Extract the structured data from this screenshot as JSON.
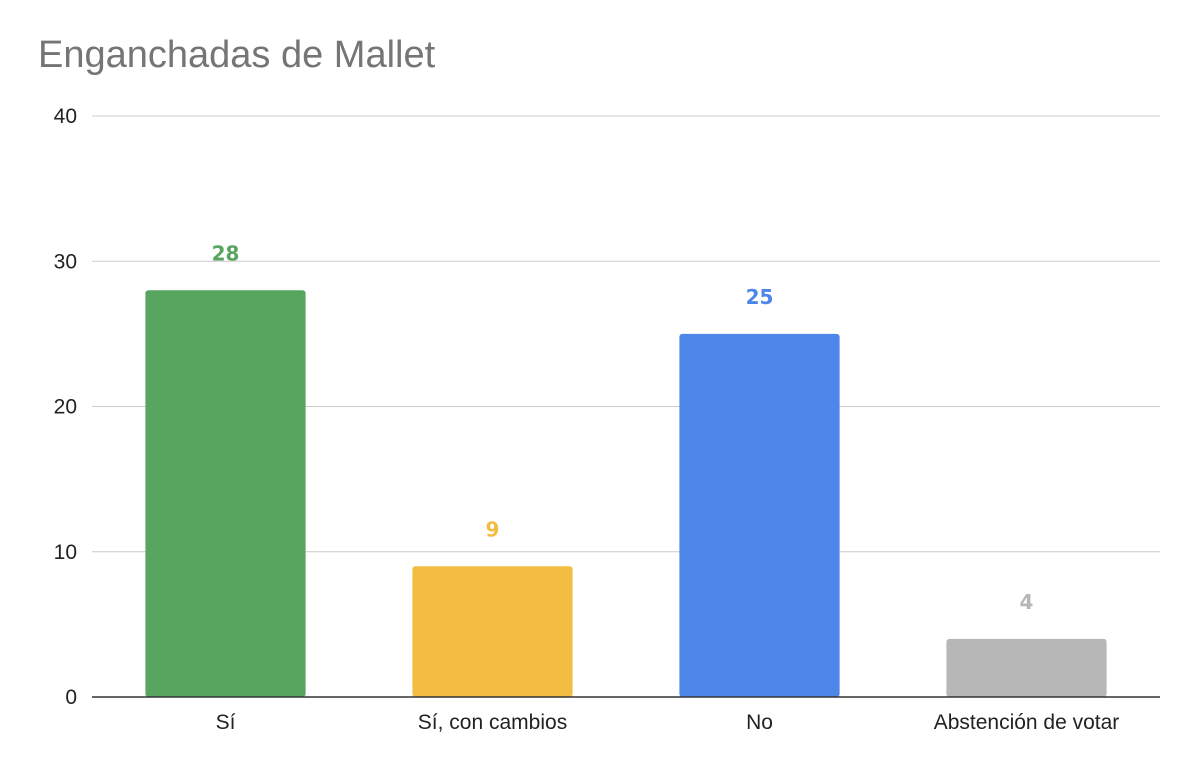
{
  "chart_data": {
    "type": "bar",
    "title": "Enganchadas de Mallet",
    "xlabel": "",
    "ylabel": "",
    "categories": [
      "Sí",
      "Sí, con cambios",
      "No",
      "Abstención de votar"
    ],
    "values": [
      28,
      9,
      25,
      4
    ],
    "colors": [
      "#57a55e",
      "#f2bd42",
      "#4f86ea",
      "#b7b7b7"
    ],
    "ylim": [
      0,
      40
    ],
    "yticks": [
      0,
      10,
      20,
      30,
      40
    ],
    "grid": true,
    "legend": "none",
    "data_labels": true
  }
}
